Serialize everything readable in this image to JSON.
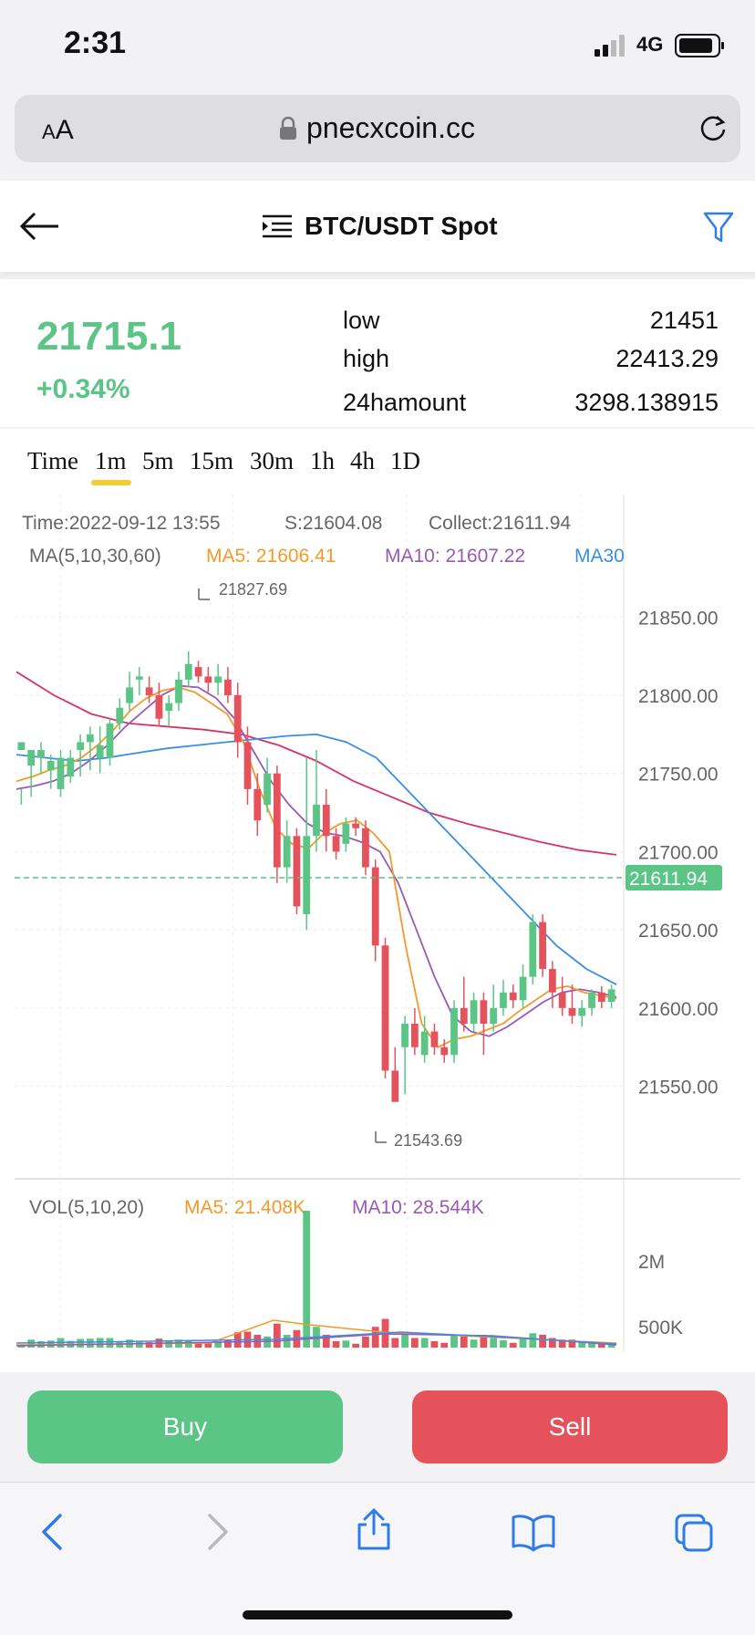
{
  "status_bar": {
    "time": "2:31",
    "network": "4G"
  },
  "browser": {
    "aa_label_small": "A",
    "aa_label_large": "A",
    "url": "pnecxcoin.cc"
  },
  "header": {
    "title": "BTC/USDT Spot",
    "icons": [
      "back-arrow-icon",
      "list-menu-icon",
      "filter-icon"
    ]
  },
  "ticker": {
    "price": "21715.1",
    "change": "+0.34%",
    "stats": [
      {
        "label": "low",
        "value": "21451"
      },
      {
        "label": "high",
        "value": "22413.29"
      },
      {
        "label": "24hamount",
        "value": "3298.138915"
      }
    ]
  },
  "periods": {
    "items": [
      "Time",
      "1m",
      "5m",
      "15m",
      "30m",
      "1h",
      "4h",
      "1D"
    ],
    "selected": "1m"
  },
  "info": {
    "time": "Time:2022-09-12 13:55",
    "s": "S:21604.08",
    "collect": "Collect:21611.94",
    "ma_label": "MA(5,10,30,60)",
    "ma5": "MA5: 21606.41",
    "ma10": "MA10: 21607.22",
    "ma30": "MA30"
  },
  "vol_info": {
    "label": "VOL(5,10,20)",
    "ma5": "MA5: 21.408K",
    "ma10": "MA10: 28.544K"
  },
  "price_axis": {
    "ticks": [
      "21850.00",
      "21800.00",
      "21750.00",
      "21700.00",
      "21650.00",
      "21600.00",
      "21550.00"
    ],
    "current_label": "21611.94",
    "high_marker": "21827.69",
    "low_marker": "21543.69"
  },
  "vol_axis": {
    "ticks": [
      "2M",
      "500K"
    ]
  },
  "colors": {
    "up": "#5ac585",
    "down": "#e5525c",
    "ma5": "#f39a2b",
    "ma10": "#9b59b6",
    "ma30": "#3a8ee6",
    "ma60": "#d6336c"
  },
  "chart_data": {
    "type": "candlestick",
    "ylim": [
      21520,
      21870
    ],
    "current_price": 21611.94,
    "candles": [
      [
        21765,
        21770,
        21740,
        21730
      ],
      [
        21755,
        21765,
        21760,
        21735
      ],
      [
        21760,
        21765,
        21770,
        21750
      ],
      [
        21752,
        21758,
        21762,
        21740
      ],
      [
        21740,
        21760,
        21765,
        21735
      ],
      [
        21748,
        21760,
        21765,
        21744
      ],
      [
        21765,
        21770,
        21775,
        21748
      ],
      [
        21770,
        21775,
        21780,
        21752
      ],
      [
        21760,
        21768,
        21780,
        21750
      ],
      [
        21760,
        21782,
        21785,
        21755
      ],
      [
        21782,
        21792,
        21798,
        21778
      ],
      [
        21795,
        21805,
        21815,
        21790
      ],
      [
        21810,
        21812,
        21818,
        21800
      ],
      [
        21805,
        21800,
        21812,
        21795
      ],
      [
        21800,
        21785,
        21808,
        21780
      ],
      [
        21790,
        21795,
        21800,
        21780
      ],
      [
        21795,
        21810,
        21815,
        21790
      ],
      [
        21810,
        21820,
        21828,
        21805
      ],
      [
        21818,
        21812,
        21822,
        21808
      ],
      [
        21812,
        21808,
        21818,
        21802
      ],
      [
        21808,
        21812,
        21820,
        21800
      ],
      [
        21810,
        21800,
        21818,
        21795
      ],
      [
        21800,
        21770,
        21808,
        21760
      ],
      [
        21770,
        21740,
        21780,
        21730
      ],
      [
        21740,
        21720,
        21750,
        21710
      ],
      [
        21730,
        21750,
        21760,
        21725
      ],
      [
        21750,
        21690,
        21755,
        21680
      ],
      [
        21690,
        21710,
        21720,
        21680
      ],
      [
        21710,
        21665,
        21715,
        21660
      ],
      [
        21660,
        21710,
        21760,
        21650
      ],
      [
        21710,
        21730,
        21765,
        21700
      ],
      [
        21730,
        21710,
        21740,
        21700
      ],
      [
        21710,
        21700,
        21715,
        21695
      ],
      [
        21705,
        21718,
        21722,
        21700
      ],
      [
        21718,
        21715,
        21722,
        21710
      ],
      [
        21715,
        21690,
        21720,
        21685
      ],
      [
        21690,
        21640,
        21695,
        21630
      ],
      [
        21640,
        21560,
        21645,
        21555
      ],
      [
        21560,
        21540,
        21575,
        21545
      ],
      [
        21575,
        21590,
        21595,
        21545
      ],
      [
        21590,
        21575,
        21600,
        21570
      ],
      [
        21570,
        21585,
        21595,
        21565
      ],
      [
        21585,
        21575,
        21590,
        21570
      ],
      [
        21575,
        21570,
        21580,
        21565
      ],
      [
        21570,
        21600,
        21605,
        21565
      ],
      [
        21600,
        21590,
        21620,
        21585
      ],
      [
        21590,
        21605,
        21610,
        21585
      ],
      [
        21605,
        21590,
        21610,
        21570
      ],
      [
        21590,
        21600,
        21615,
        21585
      ],
      [
        21600,
        21610,
        21618,
        21595
      ],
      [
        21610,
        21605,
        21615,
        21600
      ],
      [
        21605,
        21620,
        21628,
        21600
      ],
      [
        21620,
        21655,
        21660,
        21615
      ],
      [
        21655,
        21625,
        21660,
        21620
      ],
      [
        21625,
        21610,
        21630,
        21600
      ],
      [
        21610,
        21600,
        21620,
        21595
      ],
      [
        21600,
        21595,
        21615,
        21590
      ],
      [
        21595,
        21600,
        21605,
        21588
      ],
      [
        21600,
        21610,
        21612,
        21595
      ],
      [
        21610,
        21604,
        21614,
        21600
      ],
      [
        21604,
        21612,
        21615,
        21600
      ]
    ],
    "ma5": [
      21745,
      21748,
      21752,
      21755,
      21760,
      21768,
      21778,
      21790,
      21798,
      21803,
      21805,
      21802,
      21795,
      21788,
      21770,
      21740,
      21715,
      21705,
      21702,
      21712,
      21718,
      21720,
      21712,
      21700,
      21640,
      21590,
      21575,
      21580,
      21582,
      21586,
      21590,
      21598,
      21605,
      21612,
      21614,
      21610,
      21608,
      21606
    ],
    "ma10": [
      21740,
      21742,
      21745,
      21750,
      21758,
      21768,
      21780,
      21790,
      21800,
      21806,
      21805,
      21798,
      21785,
      21765,
      21745,
      21730,
      21718,
      21712,
      21710,
      21706,
      21700,
      21680,
      21650,
      21620,
      21595,
      21585,
      21582,
      21588,
      21596,
      21604,
      21610,
      21612,
      21610,
      21607
    ],
    "ma30": [
      21762,
      21760,
      21758,
      21760,
      21763,
      21766,
      21768,
      21770,
      21772,
      21774,
      21775,
      21770,
      21760,
      21740,
      21720,
      21700,
      21680,
      21660,
      21640,
      21625,
      21615
    ],
    "ma60": [
      21815,
      21800,
      21788,
      21782,
      21780,
      21778,
      21775,
      21768,
      21758,
      21745,
      21735,
      21725,
      21718,
      21712,
      21706,
      21701,
      21698
    ],
    "volume_ma5": 21408,
    "volume_ma10": 28544
  }
}
